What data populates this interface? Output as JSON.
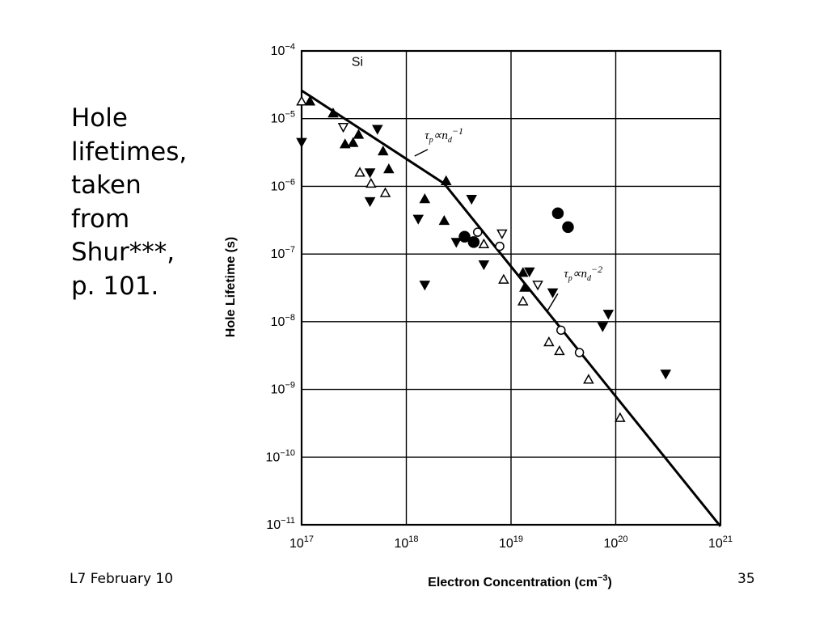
{
  "slide": {
    "caption_lines": [
      "Hole",
      "lifetimes,",
      "taken",
      "from",
      "Shur***,",
      "p. 101."
    ],
    "footer_left": "L7 February 10",
    "page_number": "35"
  },
  "chart_data": {
    "type": "scatter",
    "xlabel_main": "Electron Concentration (cm",
    "xlabel_exp": "−3",
    "xlabel_close": ")",
    "ylabel": "Hole Lifetime (s)",
    "x_scale": "log",
    "y_scale": "log",
    "xlim": [
      1e+17,
      1e+21
    ],
    "ylim": [
      1e-11,
      0.0001
    ],
    "grid": true,
    "x_ticks": [
      {
        "value": 1e+17,
        "base": "10",
        "exp": "17"
      },
      {
        "value": 1e+18,
        "base": "10",
        "exp": "18"
      },
      {
        "value": 1e+19,
        "base": "10",
        "exp": "19"
      },
      {
        "value": 1e+20,
        "base": "10",
        "exp": "20"
      },
      {
        "value": 1e+21,
        "base": "10",
        "exp": "21"
      }
    ],
    "y_ticks": [
      {
        "value": 0.0001,
        "base": "10",
        "exp": "−4"
      },
      {
        "value": 1e-05,
        "base": "10",
        "exp": "−5"
      },
      {
        "value": 1e-06,
        "base": "10",
        "exp": "−6"
      },
      {
        "value": 1e-07,
        "base": "10",
        "exp": "−7"
      },
      {
        "value": 1e-08,
        "base": "10",
        "exp": "−8"
      },
      {
        "value": 1e-09,
        "base": "10",
        "exp": "−9"
      },
      {
        "value": 1e-10,
        "base": "10",
        "exp": "−10"
      },
      {
        "value": 1e-11,
        "base": "10",
        "exp": "−11"
      }
    ],
    "annotations": [
      {
        "text": "Si",
        "x": 3e+17,
        "y": 6e-05
      },
      {
        "label": "fit-1",
        "tau": "τ",
        "tau_sub": "p",
        "prop": "∝",
        "n": "n",
        "n_sub": "d",
        "power": "−1",
        "x": 1.5e+18,
        "y": 5e-06,
        "leader_from": [
          1.6e+18,
          3.5e-06
        ],
        "leader_to": [
          1.2e+18,
          2.8e-06
        ]
      },
      {
        "label": "fit-2",
        "tau": "τ",
        "tau_sub": "p",
        "prop": "∝",
        "n": "n",
        "n_sub": "d",
        "power": "−2",
        "x": 3.2e+19,
        "y": 4.5e-08,
        "leader_from": [
          2.8e+19,
          2.6e-08
        ],
        "leader_to": [
          2.2e+19,
          1.4e-08
        ]
      }
    ],
    "fit_line": [
      {
        "x": 1e+17,
        "y": 2.6e-05
      },
      {
        "x": 2.3e+18,
        "y": 1.1e-06
      },
      {
        "x": 1e+21,
        "y": 9.5e-12
      }
    ],
    "series": [
      {
        "marker": "filled-down-triangle",
        "points": [
          {
            "x": 1e+17,
            "y": 4.5e-06
          },
          {
            "x": 4.5e+17,
            "y": 1.6e-06
          },
          {
            "x": 4.5e+17,
            "y": 6e-07
          },
          {
            "x": 5.3e+17,
            "y": 7e-06
          },
          {
            "x": 1.3e+18,
            "y": 3.3e-07
          },
          {
            "x": 3e+18,
            "y": 1.5e-07
          },
          {
            "x": 1.5e+18,
            "y": 3.5e-08
          },
          {
            "x": 4.2e+18,
            "y": 6.5e-07
          },
          {
            "x": 5.5e+18,
            "y": 7e-08
          },
          {
            "x": 1.5e+19,
            "y": 5.5e-08
          },
          {
            "x": 2.5e+19,
            "y": 2.7e-08
          },
          {
            "x": 7.5e+19,
            "y": 8.5e-09
          },
          {
            "x": 8.5e+19,
            "y": 1.3e-08
          },
          {
            "x": 3e+20,
            "y": 1.7e-09
          }
        ]
      },
      {
        "marker": "filled-up-triangle",
        "points": [
          {
            "x": 1.2e+17,
            "y": 1.8e-05
          },
          {
            "x": 2e+17,
            "y": 1.2e-05
          },
          {
            "x": 2.6e+17,
            "y": 4.2e-06
          },
          {
            "x": 3.1e+17,
            "y": 4.4e-06
          },
          {
            "x": 3.5e+17,
            "y": 5.8e-06
          },
          {
            "x": 6e+17,
            "y": 3.3e-06
          },
          {
            "x": 6.8e+17,
            "y": 1.8e-06
          },
          {
            "x": 1.5e+18,
            "y": 6.5e-07
          },
          {
            "x": 2.4e+18,
            "y": 1.2e-06
          },
          {
            "x": 2.3e+18,
            "y": 3.1e-07
          },
          {
            "x": 1.3e+19,
            "y": 5.3e-08
          },
          {
            "x": 1.35e+19,
            "y": 3.2e-08
          }
        ]
      },
      {
        "marker": "open-up-triangle",
        "points": [
          {
            "x": 1e+17,
            "y": 1.8e-05
          },
          {
            "x": 3.6e+17,
            "y": 1.6e-06
          },
          {
            "x": 4.6e+17,
            "y": 1.1e-06
          },
          {
            "x": 6.3e+17,
            "y": 8e-07
          },
          {
            "x": 5.5e+18,
            "y": 1.4e-07
          },
          {
            "x": 8.5e+18,
            "y": 4.2e-08
          },
          {
            "x": 1.3e+19,
            "y": 2e-08
          },
          {
            "x": 2.3e+19,
            "y": 5e-09
          },
          {
            "x": 2.9e+19,
            "y": 3.7e-09
          },
          {
            "x": 5.5e+19,
            "y": 1.4e-09
          },
          {
            "x": 1.1e+20,
            "y": 3.8e-10
          }
        ]
      },
      {
        "marker": "open-down-triangle",
        "points": [
          {
            "x": 2.5e+17,
            "y": 7.5e-06
          },
          {
            "x": 8.2e+18,
            "y": 2e-07
          },
          {
            "x": 1.8e+19,
            "y": 3.5e-08
          }
        ]
      },
      {
        "marker": "filled-circle",
        "points": [
          {
            "x": 3.6e+18,
            "y": 1.8e-07
          },
          {
            "x": 4.4e+18,
            "y": 1.5e-07
          },
          {
            "x": 2.8e+19,
            "y": 4e-07
          },
          {
            "x": 3.5e+19,
            "y": 2.5e-07
          }
        ]
      },
      {
        "marker": "open-circle",
        "points": [
          {
            "x": 4.8e+18,
            "y": 2.1e-07
          },
          {
            "x": 7.8e+18,
            "y": 1.3e-07
          },
          {
            "x": 3e+19,
            "y": 7.5e-09
          },
          {
            "x": 4.5e+19,
            "y": 3.5e-09
          }
        ]
      }
    ]
  }
}
